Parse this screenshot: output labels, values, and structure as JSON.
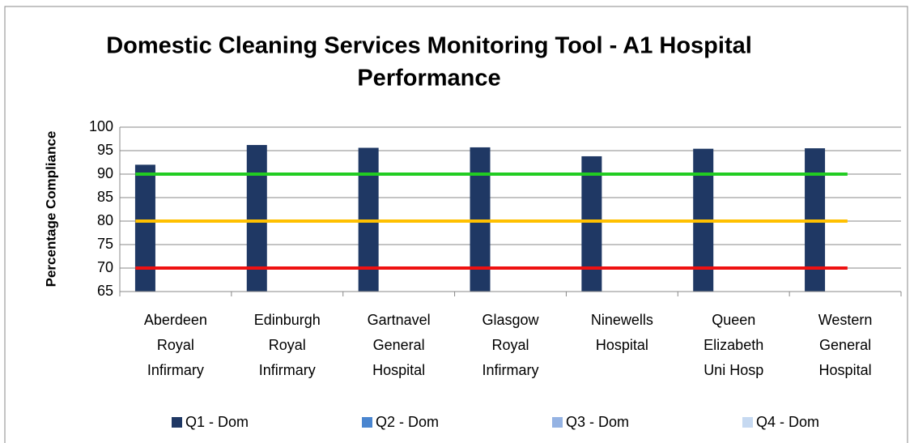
{
  "chart_data": {
    "type": "bar",
    "title": [
      "Domestic Cleaning Services Monitoring Tool - A1 Hospital",
      "Performance"
    ],
    "y_label": "Percentage Compliance",
    "categories": [
      [
        "Aberdeen",
        "Royal",
        "Infirmary"
      ],
      [
        "Edinburgh",
        "Royal",
        "Infirmary"
      ],
      [
        "Gartnavel",
        "General",
        "Hospital"
      ],
      [
        "Glasgow",
        "Royal",
        "Infirmary"
      ],
      [
        "Ninewells",
        "Hospital"
      ],
      [
        "Queen",
        "Elizabeth",
        "Uni Hosp"
      ],
      [
        "Western",
        "General",
        "Hospital"
      ]
    ],
    "series": [
      {
        "name": "Q1 - Dom",
        "color": "#1f3864",
        "values": [
          92,
          96.2,
          95.6,
          95.7,
          93.8,
          95.4,
          95.5
        ]
      },
      {
        "name": "Q2 - Dom",
        "color": "#4a86d0",
        "values": [
          null,
          null,
          null,
          null,
          null,
          null,
          null
        ]
      },
      {
        "name": "Q3 - Dom",
        "color": "#95b3e3",
        "values": [
          null,
          null,
          null,
          null,
          null,
          null,
          null
        ]
      },
      {
        "name": "Q4 - Dom",
        "color": "#c6d9f1",
        "values": [
          null,
          null,
          null,
          null,
          null,
          null,
          null
        ]
      }
    ],
    "reference_lines": [
      {
        "value": 90,
        "color": "#22cc22"
      },
      {
        "value": 80,
        "color": "#ffc000"
      },
      {
        "value": 70,
        "color": "#ee1111"
      }
    ],
    "ylim": [
      65,
      100
    ],
    "yticks": [
      65,
      70,
      75,
      80,
      85,
      90,
      95,
      100
    ],
    "grid": true,
    "legend": "bottom"
  }
}
